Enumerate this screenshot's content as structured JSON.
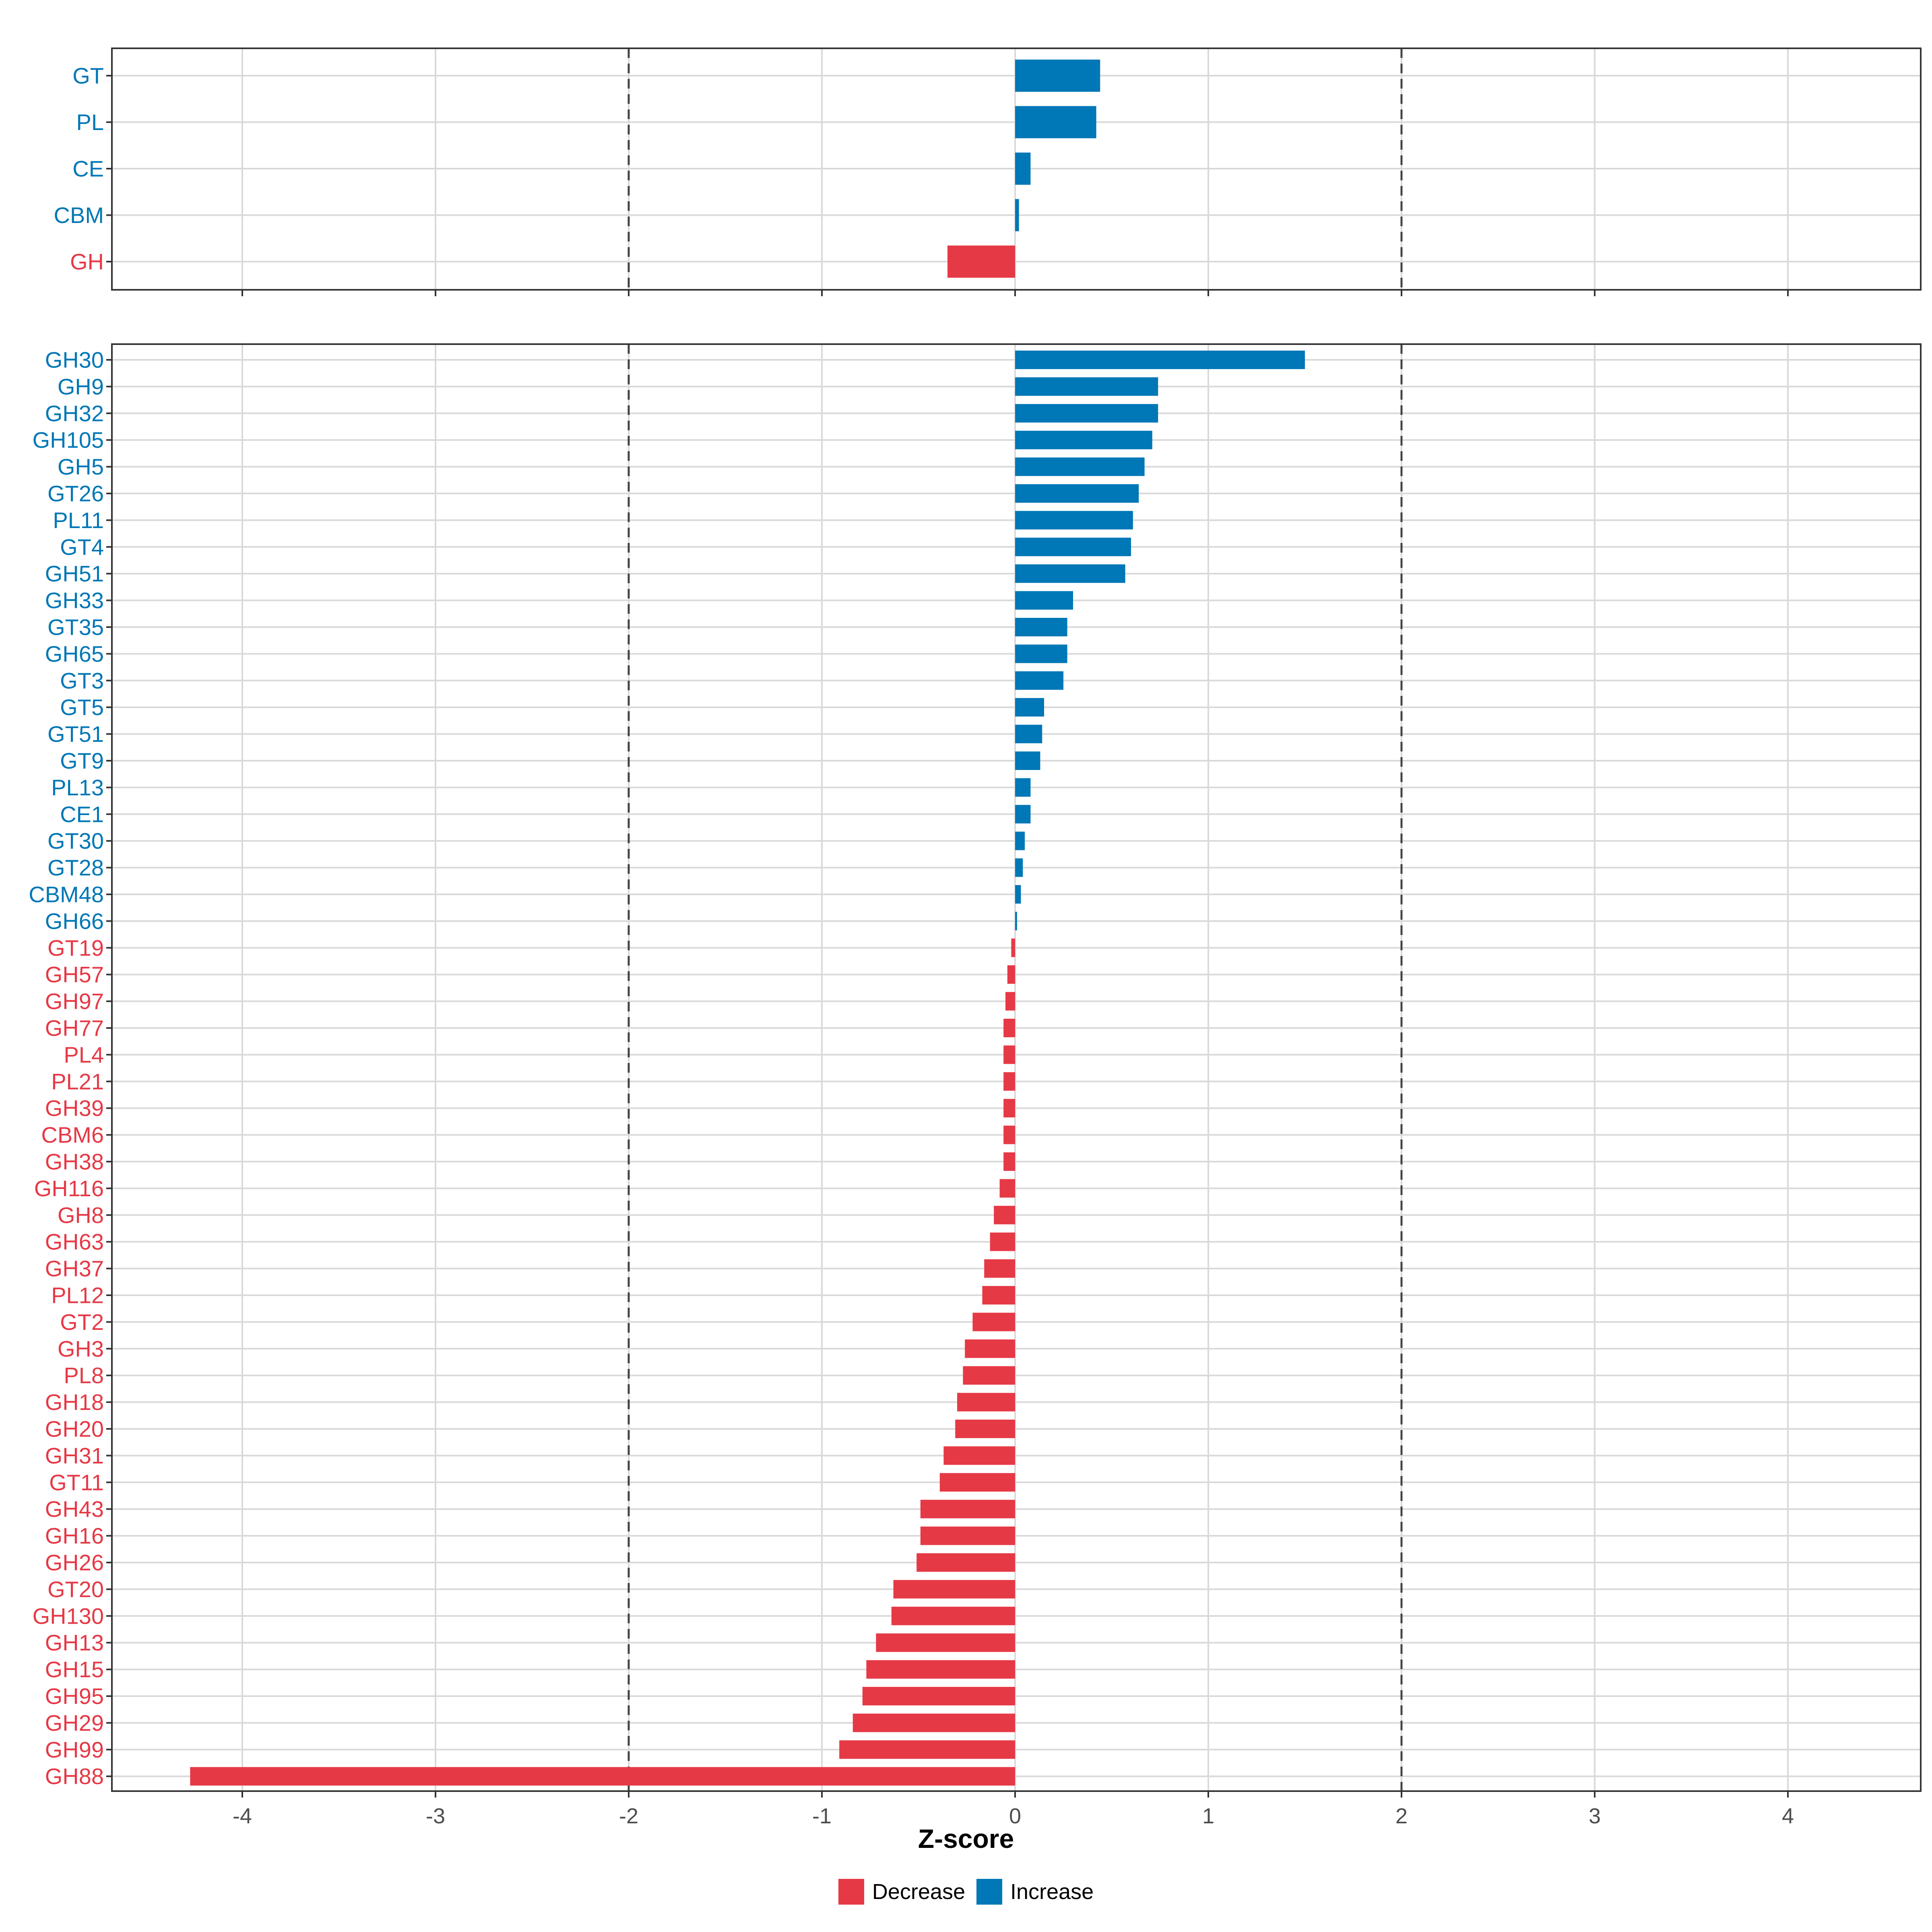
{
  "colors": {
    "decrease": "#e63946",
    "increase": "#0077b6",
    "grid": "#d9d9d9",
    "refline": "#444444",
    "axis_text": "#4d4d4d"
  },
  "chart_data": [
    {
      "type": "bar",
      "orientation": "horizontal",
      "panel": "top",
      "categories": [
        "GT",
        "PL",
        "CE",
        "CBM",
        "GH"
      ],
      "values": [
        0.44,
        0.42,
        0.08,
        0.02,
        -0.35
      ],
      "xlim": [
        -4.7,
        4.7
      ],
      "xticks": [
        -4,
        -3,
        -2,
        -1,
        0,
        1,
        2,
        3,
        4
      ],
      "reference_lines": [
        -2,
        2
      ],
      "show_tick_labels": false
    },
    {
      "type": "bar",
      "orientation": "horizontal",
      "panel": "bottom",
      "categories": [
        "GH30",
        "GH9",
        "GH32",
        "GH105",
        "GH5",
        "GT26",
        "PL11",
        "GT4",
        "GH51",
        "GH33",
        "GT35",
        "GH65",
        "GT3",
        "GT5",
        "GT51",
        "GT9",
        "PL13",
        "CE1",
        "GT30",
        "GT28",
        "CBM48",
        "GH66",
        "GT19",
        "GH57",
        "GH97",
        "GH77",
        "PL4",
        "PL21",
        "GH39",
        "CBM6",
        "GH38",
        "GH116",
        "GH8",
        "GH63",
        "GH37",
        "PL12",
        "GT2",
        "GH3",
        "PL8",
        "GH18",
        "GH20",
        "GH31",
        "GT11",
        "GH43",
        "GH16",
        "GH26",
        "GT20",
        "GH130",
        "GH13",
        "GH15",
        "GH95",
        "GH29",
        "GH99",
        "GH88"
      ],
      "values": [
        1.5,
        0.74,
        0.74,
        0.71,
        0.67,
        0.64,
        0.61,
        0.6,
        0.57,
        0.3,
        0.27,
        0.27,
        0.25,
        0.15,
        0.14,
        0.13,
        0.08,
        0.08,
        0.05,
        0.04,
        0.03,
        0.01,
        -0.02,
        -0.04,
        -0.05,
        -0.06,
        -0.06,
        -0.06,
        -0.06,
        -0.06,
        -0.06,
        -0.08,
        -0.11,
        -0.13,
        -0.16,
        -0.17,
        -0.22,
        -0.26,
        -0.27,
        -0.3,
        -0.31,
        -0.37,
        -0.39,
        -0.49,
        -0.49,
        -0.51,
        -0.63,
        -0.64,
        -0.72,
        -0.77,
        -0.79,
        -0.84,
        -0.91,
        -4.27
      ],
      "xlim": [
        -4.7,
        4.7
      ],
      "xticks": [
        -4,
        -3,
        -2,
        -1,
        0,
        1,
        2,
        3,
        4
      ],
      "tick_labels": [
        "-4",
        "-3",
        "-2",
        "-1",
        "0",
        "1",
        "2",
        "3",
        "4"
      ],
      "reference_lines": [
        -2,
        2
      ],
      "xlabel": "Z-score"
    }
  ],
  "legend": {
    "items": [
      {
        "label": "Decrease",
        "color": "#e63946"
      },
      {
        "label": "Increase",
        "color": "#0077b6"
      }
    ]
  }
}
